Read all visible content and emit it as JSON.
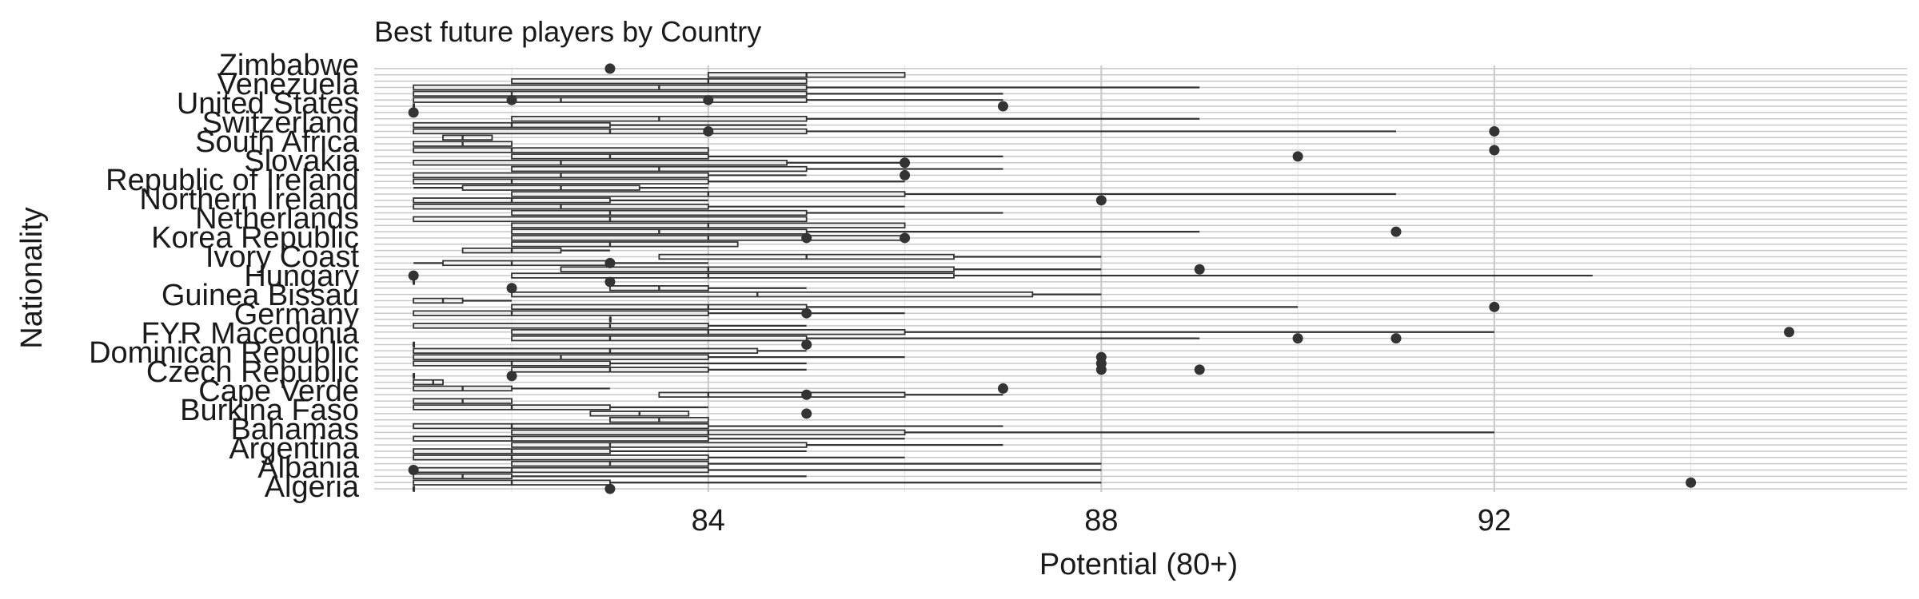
{
  "chart_data": {
    "type": "boxplot",
    "orientation": "horizontal",
    "title": "Best future players by Country",
    "xlabel": "Potential (80+)",
    "ylabel": "Nationality",
    "xlim": [
      80.6,
      96.2
    ],
    "xticks": [
      84,
      88,
      92
    ],
    "grid": true,
    "legend": "none",
    "colors": {
      "ink": "#333333",
      "grid_major": "#c8c8c8",
      "grid_minor": "#e3e3e3",
      "text": "#1a1a1a"
    },
    "visible_category_labels": [
      "Zimbabwe",
      "Venezuela",
      "United States",
      "Switzerland",
      "South Africa",
      "Slovakia",
      "Republic of Ireland",
      "Northern Ireland",
      "Netherlands",
      "Korea Republic",
      "Ivory Coast",
      "Hungary",
      "Guinea Bissau",
      "Germany",
      "FYR Macedonia",
      "Dominican Republic",
      "Czech Republic",
      "Cape Verde",
      "Burkina Faso",
      "Bahamas",
      "Argentina",
      "Albania",
      "Algeria"
    ],
    "series": [
      {
        "q1": 81,
        "median": 81,
        "q3": 81,
        "whisker_low": 81,
        "whisker_high": 81,
        "outliers": [
          83
        ]
      },
      {
        "q1": 81,
        "median": 82,
        "q3": 83,
        "whisker_low": 81,
        "whisker_high": 88,
        "outliers": [
          94
        ]
      },
      {
        "q1": 81,
        "median": 81.5,
        "q3": 82,
        "whisker_low": 81,
        "whisker_high": 85,
        "outliers": []
      },
      {
        "q1": 81,
        "median": 82,
        "q3": 84,
        "whisker_low": 81,
        "whisker_high": 88,
        "outliers": [
          81
        ]
      },
      {
        "q1": 82,
        "median": 83,
        "q3": 84,
        "whisker_low": 82,
        "whisker_high": 88,
        "outliers": []
      },
      {
        "q1": 81,
        "median": 82,
        "q3": 84,
        "whisker_low": 81,
        "whisker_high": 86,
        "outliers": []
      },
      {
        "q1": 81,
        "median": 82,
        "q3": 83,
        "whisker_low": 81,
        "whisker_high": 85,
        "outliers": []
      },
      {
        "q1": 82,
        "median": 83,
        "q3": 85,
        "whisker_low": 82,
        "whisker_high": 87,
        "outliers": []
      },
      {
        "q1": 81,
        "median": 82,
        "q3": 84,
        "whisker_low": 81,
        "whisker_high": 86,
        "outliers": []
      },
      {
        "q1": 82,
        "median": 84,
        "q3": 86,
        "whisker_low": 82,
        "whisker_high": 92,
        "outliers": []
      },
      {
        "q1": 81,
        "median": 82,
        "q3": 84,
        "whisker_low": 81,
        "whisker_high": 87,
        "outliers": []
      },
      {
        "q1": 83,
        "median": 83.5,
        "q3": 84,
        "whisker_low": 83,
        "whisker_high": 84,
        "outliers": []
      },
      {
        "q1": 82.8,
        "median": 83.3,
        "q3": 83.8,
        "whisker_low": 82.8,
        "whisker_high": 83.8,
        "outliers": [
          85
        ]
      },
      {
        "q1": 81,
        "median": 82,
        "q3": 83,
        "whisker_low": 81,
        "whisker_high": 84,
        "outliers": []
      },
      {
        "q1": 81,
        "median": 81.5,
        "q3": 82,
        "whisker_low": 81,
        "whisker_high": 82,
        "outliers": []
      },
      {
        "q1": 83.5,
        "median": 84,
        "q3": 86,
        "whisker_low": 83.5,
        "whisker_high": 87,
        "outliers": [
          85
        ]
      },
      {
        "q1": 81,
        "median": 81.5,
        "q3": 82,
        "whisker_low": 81,
        "whisker_high": 83,
        "outliers": [
          87
        ]
      },
      {
        "q1": 81,
        "median": 81.2,
        "q3": 81.3,
        "whisker_low": 81,
        "whisker_high": 81.3,
        "outliers": []
      },
      {
        "q1": 81,
        "median": 81,
        "q3": 81,
        "whisker_low": 81,
        "whisker_high": 81,
        "outliers": [
          82
        ]
      },
      {
        "q1": 82,
        "median": 83,
        "q3": 84,
        "whisker_low": 82,
        "whisker_high": 85,
        "outliers": [
          88,
          89
        ]
      },
      {
        "q1": 81,
        "median": 82,
        "q3": 83,
        "whisker_low": 81,
        "whisker_high": 85,
        "outliers": [
          88
        ]
      },
      {
        "q1": 81,
        "median": 82.5,
        "q3": 84,
        "whisker_low": 81,
        "whisker_high": 86,
        "outliers": [
          88
        ]
      },
      {
        "q1": 81,
        "median": 83,
        "q3": 84.5,
        "whisker_low": 81,
        "whisker_high": 85,
        "outliers": []
      },
      {
        "q1": 81,
        "median": 81,
        "q3": 81,
        "whisker_low": 81,
        "whisker_high": 81,
        "outliers": [
          85
        ]
      },
      {
        "q1": 82,
        "median": 83,
        "q3": 85,
        "whisker_low": 82,
        "whisker_high": 89,
        "outliers": [
          90,
          91
        ]
      },
      {
        "q1": 82,
        "median": 84,
        "q3": 86,
        "whisker_low": 82,
        "whisker_high": 92,
        "outliers": [
          95
        ]
      },
      {
        "q1": 81,
        "median": 83,
        "q3": 84,
        "whisker_low": 81,
        "whisker_high": 85,
        "outliers": []
      },
      {
        "q1": 83,
        "median": 83,
        "q3": 83,
        "whisker_low": 83,
        "whisker_high": 83,
        "outliers": []
      },
      {
        "q1": 81,
        "median": 82,
        "q3": 84,
        "whisker_low": 81,
        "whisker_high": 86,
        "outliers": [
          85
        ]
      },
      {
        "q1": 82,
        "median": 84,
        "q3": 85,
        "whisker_low": 82,
        "whisker_high": 90,
        "outliers": [
          92
        ]
      },
      {
        "q1": 81,
        "median": 81.3,
        "q3": 81.5,
        "whisker_low": 81,
        "whisker_high": 82,
        "outliers": []
      },
      {
        "q1": 82,
        "median": 84.5,
        "q3": 87.3,
        "whisker_low": 82,
        "whisker_high": 88,
        "outliers": []
      },
      {
        "q1": 83,
        "median": 83.5,
        "q3": 84,
        "whisker_low": 83,
        "whisker_high": 85,
        "outliers": [
          82
        ]
      },
      {
        "q1": 81,
        "median": 81,
        "q3": 81,
        "whisker_low": 81,
        "whisker_high": 81,
        "outliers": [
          83
        ]
      },
      {
        "q1": 82,
        "median": 84,
        "q3": 86.5,
        "whisker_low": 82,
        "whisker_high": 93,
        "outliers": [
          81
        ]
      },
      {
        "q1": 82.5,
        "median": 84,
        "q3": 86.5,
        "whisker_low": 82.5,
        "whisker_high": 88,
        "outliers": [
          89
        ]
      },
      {
        "q1": 81.3,
        "median": 82,
        "q3": 83,
        "whisker_low": 81,
        "whisker_high": 84,
        "outliers": [
          83
        ]
      },
      {
        "q1": 83.5,
        "median": 85,
        "q3": 86.5,
        "whisker_low": 83.5,
        "whisker_high": 88,
        "outliers": []
      },
      {
        "q1": 81.5,
        "median": 82,
        "q3": 82.5,
        "whisker_low": 81.5,
        "whisker_high": 83,
        "outliers": []
      },
      {
        "q1": 82,
        "median": 83,
        "q3": 84.3,
        "whisker_low": 82,
        "whisker_high": 84.3,
        "outliers": []
      },
      {
        "q1": 82,
        "median": 84,
        "q3": 86,
        "whisker_low": 82,
        "whisker_high": 86,
        "outliers": [
          85,
          86
        ]
      },
      {
        "q1": 82,
        "median": 83.5,
        "q3": 85,
        "whisker_low": 82,
        "whisker_high": 89,
        "outliers": [
          91
        ]
      },
      {
        "q1": 82,
        "median": 84,
        "q3": 86,
        "whisker_low": 82,
        "whisker_high": 86,
        "outliers": []
      },
      {
        "q1": 81,
        "median": 83,
        "q3": 85,
        "whisker_low": 81,
        "whisker_high": 85,
        "outliers": []
      },
      {
        "q1": 82,
        "median": 83,
        "q3": 85,
        "whisker_low": 82,
        "whisker_high": 87,
        "outliers": []
      },
      {
        "q1": 81,
        "median": 82.5,
        "q3": 84,
        "whisker_low": 81,
        "whisker_high": 86,
        "outliers": []
      },
      {
        "q1": 81,
        "median": 82,
        "q3": 83,
        "whisker_low": 81,
        "whisker_high": 84,
        "outliers": [
          88
        ]
      },
      {
        "q1": 82,
        "median": 84,
        "q3": 86,
        "whisker_low": 82,
        "whisker_high": 91,
        "outliers": []
      },
      {
        "q1": 81.5,
        "median": 82.5,
        "q3": 83.3,
        "whisker_low": 81,
        "whisker_high": 84,
        "outliers": []
      },
      {
        "q1": 81,
        "median": 82,
        "q3": 84,
        "whisker_low": 81,
        "whisker_high": 86,
        "outliers": []
      },
      {
        "q1": 81,
        "median": 82.5,
        "q3": 84,
        "whisker_low": 81,
        "whisker_high": 85,
        "outliers": [
          86
        ]
      },
      {
        "q1": 82,
        "median": 83.5,
        "q3": 85,
        "whisker_low": 82,
        "whisker_high": 87,
        "outliers": []
      },
      {
        "q1": 81,
        "median": 82.5,
        "q3": 84.8,
        "whisker_low": 81,
        "whisker_high": 86,
        "outliers": [
          86
        ]
      },
      {
        "q1": 82,
        "median": 83,
        "q3": 84,
        "whisker_low": 82,
        "whisker_high": 87,
        "outliers": [
          90
        ]
      },
      {
        "q1": 81,
        "median": 82,
        "q3": 84,
        "whisker_low": 81,
        "whisker_high": 84,
        "outliers": [
          92
        ]
      },
      {
        "q1": 81,
        "median": 81.5,
        "q3": 82,
        "whisker_low": 81,
        "whisker_high": 82,
        "outliers": []
      },
      {
        "q1": 81.3,
        "median": 81.5,
        "q3": 81.8,
        "whisker_low": 81.3,
        "whisker_high": 81.8,
        "outliers": []
      },
      {
        "q1": 81,
        "median": 83,
        "q3": 85,
        "whisker_low": 81,
        "whisker_high": 91,
        "outliers": [
          92,
          84
        ]
      },
      {
        "q1": 81,
        "median": 82,
        "q3": 83,
        "whisker_low": 81,
        "whisker_high": 85,
        "outliers": []
      },
      {
        "q1": 82,
        "median": 83.5,
        "q3": 85,
        "whisker_low": 82,
        "whisker_high": 89,
        "outliers": []
      },
      {
        "q1": 81,
        "median": 81,
        "q3": 81,
        "whisker_low": 81,
        "whisker_high": 81,
        "outliers": [
          81
        ]
      },
      {
        "q1": 81,
        "median": 81,
        "q3": 81,
        "whisker_low": 81,
        "whisker_high": 81,
        "outliers": [
          87
        ]
      },
      {
        "q1": 81,
        "median": 82.5,
        "q3": 85,
        "whisker_low": 81,
        "whisker_high": 87,
        "outliers": [
          82,
          84
        ]
      },
      {
        "q1": 81,
        "median": 82,
        "q3": 85,
        "whisker_low": 81,
        "whisker_high": 87,
        "outliers": []
      },
      {
        "q1": 81,
        "median": 83.5,
        "q3": 85,
        "whisker_low": 81,
        "whisker_high": 89,
        "outliers": []
      },
      {
        "q1": 82,
        "median": 84,
        "q3": 85,
        "whisker_low": 82,
        "whisker_high": 85,
        "outliers": []
      },
      {
        "q1": 84,
        "median": 85,
        "q3": 86,
        "whisker_low": 84,
        "whisker_high": 86,
        "outliers": []
      },
      {
        "q1": 83,
        "median": 83,
        "q3": 83,
        "whisker_low": 83,
        "whisker_high": 83,
        "outliers": [
          83
        ]
      }
    ]
  }
}
